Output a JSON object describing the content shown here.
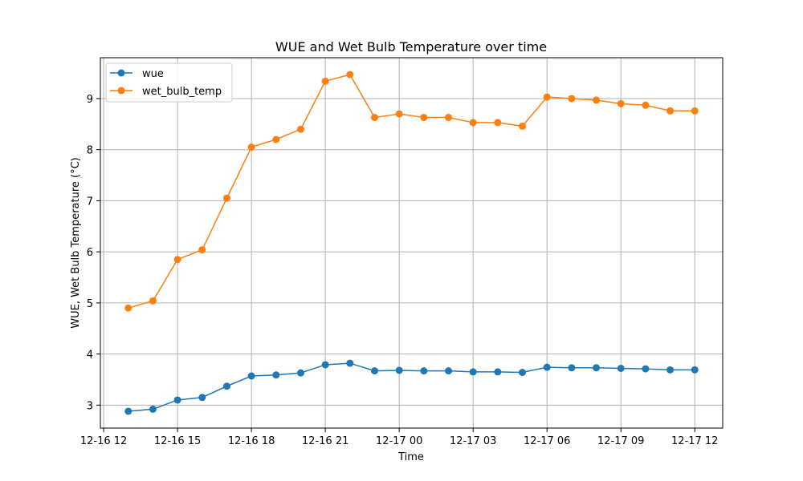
{
  "chart_data": {
    "type": "line",
    "title": "WUE and Wet Bulb Temperature over time",
    "xlabel": "Time",
    "ylabel": "WUE, Wet Bulb Temperature (°C)",
    "x": [
      "2024-12-16 13:00",
      "2024-12-16 14:00",
      "2024-12-16 15:00",
      "2024-12-16 16:00",
      "2024-12-16 17:00",
      "2024-12-16 18:00",
      "2024-12-16 19:00",
      "2024-12-16 20:00",
      "2024-12-16 21:00",
      "2024-12-16 22:00",
      "2024-12-16 23:00",
      "2024-12-17 00:00",
      "2024-12-17 01:00",
      "2024-12-17 02:00",
      "2024-12-17 03:00",
      "2024-12-17 04:00",
      "2024-12-17 05:00",
      "2024-12-17 06:00",
      "2024-12-17 07:00",
      "2024-12-17 08:00",
      "2024-12-17 09:00",
      "2024-12-17 10:00",
      "2024-12-17 11:00",
      "2024-12-17 12:00"
    ],
    "x_ticks": [
      "12-16 12",
      "12-16 15",
      "12-16 18",
      "12-16 21",
      "12-17 00",
      "12-17 03",
      "12-17 06",
      "12-17 09",
      "12-17 12"
    ],
    "y_ticks": [
      3,
      4,
      5,
      6,
      7,
      8,
      9
    ],
    "xlim": [
      "2024-12-16 11:52",
      "2024-12-17 13:08"
    ],
    "ylim": [
      2.55,
      9.8
    ],
    "grid": true,
    "legend_position": "upper left",
    "series": [
      {
        "name": "wue",
        "color": "#1f77b4",
        "values": [
          2.88,
          2.92,
          3.1,
          3.15,
          3.37,
          3.57,
          3.59,
          3.63,
          3.79,
          3.82,
          3.67,
          3.68,
          3.67,
          3.67,
          3.65,
          3.65,
          3.64,
          3.74,
          3.73,
          3.73,
          3.72,
          3.71,
          3.69,
          3.69
        ]
      },
      {
        "name": "wet_bulb_temp",
        "color": "#ff7f0e",
        "values": [
          4.9,
          5.04,
          5.85,
          6.04,
          7.05,
          8.05,
          8.2,
          8.4,
          9.34,
          9.47,
          8.63,
          8.7,
          8.63,
          8.63,
          8.53,
          8.53,
          8.46,
          9.03,
          9.0,
          8.97,
          8.9,
          8.87,
          8.76,
          8.76
        ]
      }
    ]
  }
}
